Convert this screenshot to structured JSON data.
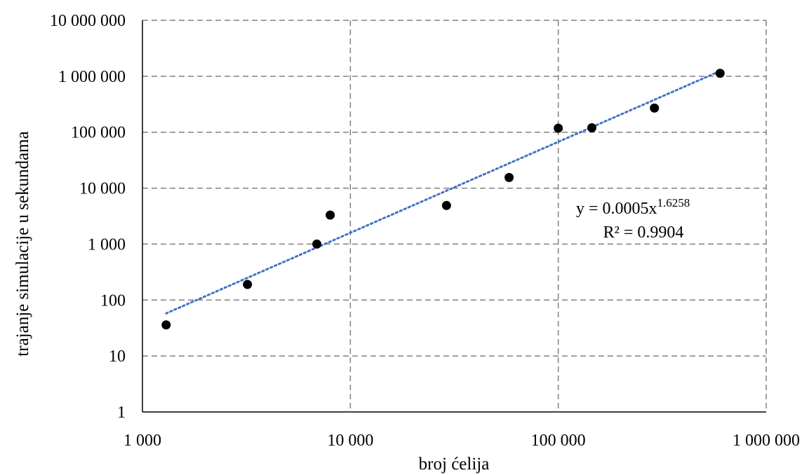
{
  "chart_data": {
    "type": "scatter",
    "title": "",
    "xlabel": "broj ćelija",
    "ylabel": "trajanje simulacije u sekundama",
    "x_scale": "log",
    "y_scale": "log",
    "xlim": [
      1000,
      1000000
    ],
    "ylim": [
      1,
      10000000
    ],
    "x_ticks": [
      1000,
      10000,
      100000,
      1000000
    ],
    "x_tick_labels": [
      "1 000",
      "10 000",
      "100 000",
      "1 000 000"
    ],
    "y_ticks": [
      1,
      10,
      100,
      1000,
      10000,
      100000,
      1000000,
      10000000
    ],
    "y_tick_labels": [
      "1",
      "10",
      "100",
      "1 000",
      "10 000",
      "100 000",
      "1 000 000",
      "10 000 000"
    ],
    "grid": true,
    "legend": "none",
    "series": [
      {
        "x": [
          1300,
          3200,
          6900,
          8000,
          29000,
          58000,
          100000,
          145000,
          290000,
          600000
        ],
        "y": [
          36,
          190,
          1000,
          3300,
          4900,
          15500,
          118000,
          120000,
          270000,
          1130000
        ],
        "marker_color": "#000000"
      }
    ],
    "trendline": {
      "type": "power",
      "coefficient": 0.0005,
      "exponent": 1.6258,
      "x_range": [
        1300,
        600000
      ],
      "color": "#4472C4",
      "equation_base": "y = 0.0005x",
      "equation_exponent": "1.6258",
      "r_squared_text": "R² = 0.9904"
    }
  }
}
